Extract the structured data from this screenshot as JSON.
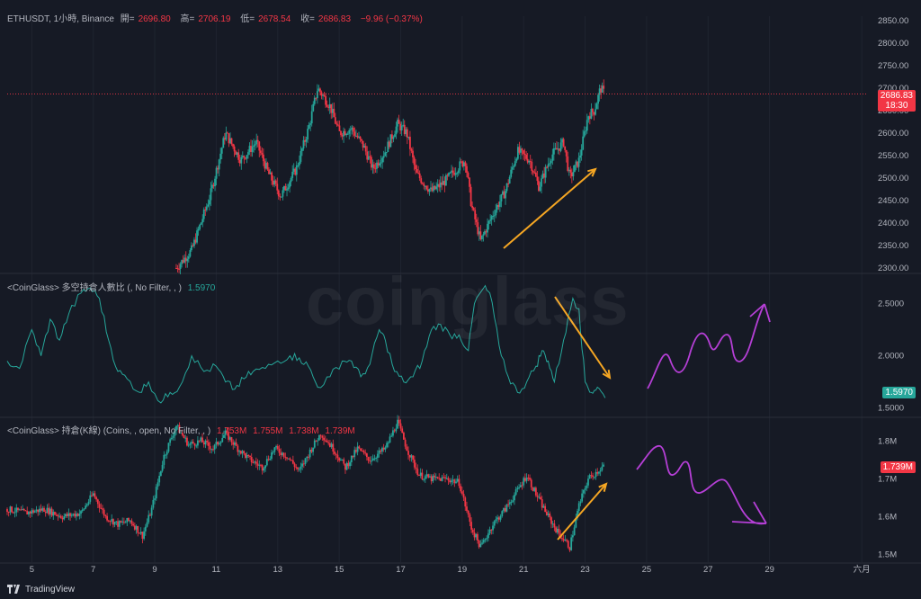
{
  "watermark": "coinglass",
  "header": {
    "symbol": "ETHUSDT, 1小時, Binance",
    "open_label": "開=",
    "open": "2696.80",
    "high_label": "高=",
    "high": "2706.19",
    "low_label": "低=",
    "low": "2678.54",
    "close_label": "收=",
    "close": "2686.83",
    "change": "−9.96 (−0.37%)"
  },
  "price_tag": {
    "value": "2686.83",
    "countdown": "18:30"
  },
  "ratio_legend": {
    "title": "<CoinGlass> 多空持倉人數比 (, No Filter, , )",
    "value": "1.5970"
  },
  "ratio_tag": "1.5970",
  "oi_legend": {
    "title": "<CoinGlass> 持倉(K線) (Coins, , open, No Filter, , )",
    "o": "1.753M",
    "h": "1.755M",
    "l": "1.738M",
    "c": "1.739M"
  },
  "oi_tag": "1.739M",
  "footer": {
    "brand": "TradingView"
  },
  "colors": {
    "up": "#26a69a",
    "down": "#f23645",
    "ratio_line": "#26a69a",
    "arrow": "#f5a623",
    "drawing": "#b53fd6"
  },
  "chart_data": [
    {
      "type": "candlestick",
      "title": "ETHUSDT, 1小時, Binance",
      "y_ticks": [
        "2850.00",
        "2800.00",
        "2750.00",
        "2700.00",
        "2650.00",
        "2600.00",
        "2550.00",
        "2500.00",
        "2450.00",
        "2400.00",
        "2350.00",
        "2300.00"
      ],
      "ylim": [
        2290,
        2860
      ],
      "x_ticks": [
        "5",
        "7",
        "9",
        "11",
        "13",
        "15",
        "17",
        "19",
        "21",
        "23",
        "25",
        "27",
        "29",
        "六月"
      ],
      "x_range_days": [
        4.2,
        32.2
      ],
      "last_price": 2686.83,
      "anchors": [
        [
          9.7,
          2300
        ],
        [
          10.2,
          2340
        ],
        [
          10.8,
          2460
        ],
        [
          11.3,
          2600
        ],
        [
          11.8,
          2540
        ],
        [
          12.3,
          2580
        ],
        [
          12.7,
          2510
        ],
        [
          13.1,
          2460
        ],
        [
          13.6,
          2520
        ],
        [
          14.0,
          2610
        ],
        [
          14.3,
          2700
        ],
        [
          14.7,
          2660
        ],
        [
          15.0,
          2600
        ],
        [
          15.4,
          2610
        ],
        [
          15.8,
          2570
        ],
        [
          16.1,
          2520
        ],
        [
          16.5,
          2560
        ],
        [
          16.9,
          2620
        ],
        [
          17.2,
          2600
        ],
        [
          17.5,
          2510
        ],
        [
          18.0,
          2470
        ],
        [
          18.4,
          2490
        ],
        [
          18.8,
          2520
        ],
        [
          19.1,
          2540
        ],
        [
          19.3,
          2440
        ],
        [
          19.6,
          2360
        ],
        [
          20.0,
          2420
        ],
        [
          20.4,
          2470
        ],
        [
          20.8,
          2560
        ],
        [
          21.2,
          2540
        ],
        [
          21.5,
          2480
        ],
        [
          21.9,
          2550
        ],
        [
          22.3,
          2580
        ],
        [
          22.5,
          2500
        ],
        [
          22.8,
          2540
        ],
        [
          23.1,
          2640
        ],
        [
          23.3,
          2650
        ],
        [
          23.5,
          2700
        ],
        [
          23.65,
          2687
        ]
      ]
    },
    {
      "type": "line",
      "title": "<CoinGlass> 多空持倉人數比 (, No Filter, , )",
      "y_ticks": [
        "2.5000",
        "2.0000",
        "1.5000"
      ],
      "ylim": [
        1.42,
        2.78
      ],
      "last_value": 1.597,
      "points": [
        [
          4.2,
          1.95
        ],
        [
          4.6,
          1.88
        ],
        [
          5.0,
          2.25
        ],
        [
          5.3,
          2.0
        ],
        [
          5.6,
          2.35
        ],
        [
          5.9,
          2.15
        ],
        [
          6.2,
          2.4
        ],
        [
          6.6,
          2.6
        ],
        [
          6.9,
          2.65
        ],
        [
          7.2,
          2.55
        ],
        [
          7.5,
          2.15
        ],
        [
          7.8,
          1.85
        ],
        [
          8.1,
          1.78
        ],
        [
          8.5,
          1.65
        ],
        [
          8.8,
          1.75
        ],
        [
          9.2,
          1.55
        ],
        [
          9.5,
          1.65
        ],
        [
          9.8,
          1.7
        ],
        [
          10.2,
          2.0
        ],
        [
          10.6,
          1.85
        ],
        [
          11.0,
          1.9
        ],
        [
          11.3,
          1.75
        ],
        [
          11.6,
          1.68
        ],
        [
          11.9,
          1.78
        ],
        [
          12.2,
          1.85
        ],
        [
          12.6,
          1.88
        ],
        [
          13.0,
          1.95
        ],
        [
          13.4,
          2.0
        ],
        [
          13.7,
          1.98
        ],
        [
          14.0,
          1.9
        ],
        [
          14.3,
          1.7
        ],
        [
          14.7,
          1.8
        ],
        [
          15.1,
          1.95
        ],
        [
          15.4,
          1.95
        ],
        [
          15.7,
          1.8
        ],
        [
          16.0,
          1.92
        ],
        [
          16.3,
          2.25
        ],
        [
          16.5,
          2.15
        ],
        [
          16.8,
          1.85
        ],
        [
          17.1,
          1.75
        ],
        [
          17.4,
          1.8
        ],
        [
          17.7,
          1.95
        ],
        [
          18.0,
          2.25
        ],
        [
          18.3,
          2.3
        ],
        [
          18.6,
          2.2
        ],
        [
          18.9,
          2.2
        ],
        [
          19.2,
          2.05
        ],
        [
          19.4,
          2.5
        ],
        [
          19.7,
          2.65
        ],
        [
          19.9,
          2.6
        ],
        [
          20.2,
          2.1
        ],
        [
          20.5,
          1.8
        ],
        [
          20.8,
          1.65
        ],
        [
          21.1,
          1.75
        ],
        [
          21.4,
          1.9
        ],
        [
          21.6,
          2.05
        ],
        [
          21.8,
          1.95
        ],
        [
          22.0,
          1.75
        ],
        [
          22.3,
          2.15
        ],
        [
          22.6,
          2.55
        ],
        [
          22.8,
          2.45
        ],
        [
          23.0,
          1.75
        ],
        [
          23.2,
          1.65
        ],
        [
          23.4,
          1.7
        ],
        [
          23.65,
          1.597
        ]
      ]
    },
    {
      "type": "candlestick",
      "title": "<CoinGlass> 持倉(K線) (Coins, , open, No Filter, , )",
      "y_ticks": [
        "1.8M",
        "1.7M",
        "1.6M",
        "1.5M"
      ],
      "ylim": [
        1.48,
        1.86
      ],
      "last_value": 1.739,
      "anchors": [
        [
          4.2,
          1.62
        ],
        [
          4.8,
          1.61
        ],
        [
          5.4,
          1.62
        ],
        [
          6.0,
          1.6
        ],
        [
          6.6,
          1.61
        ],
        [
          7.0,
          1.66
        ],
        [
          7.4,
          1.6
        ],
        [
          7.8,
          1.58
        ],
        [
          8.2,
          1.59
        ],
        [
          8.6,
          1.55
        ],
        [
          8.9,
          1.62
        ],
        [
          9.3,
          1.76
        ],
        [
          9.7,
          1.84
        ],
        [
          10.1,
          1.79
        ],
        [
          10.5,
          1.8
        ],
        [
          10.9,
          1.78
        ],
        [
          11.3,
          1.82
        ],
        [
          11.7,
          1.78
        ],
        [
          12.1,
          1.75
        ],
        [
          12.5,
          1.73
        ],
        [
          12.9,
          1.78
        ],
        [
          13.3,
          1.76
        ],
        [
          13.7,
          1.72
        ],
        [
          14.1,
          1.78
        ],
        [
          14.4,
          1.82
        ],
        [
          14.8,
          1.78
        ],
        [
          15.2,
          1.73
        ],
        [
          15.6,
          1.78
        ],
        [
          16.0,
          1.75
        ],
        [
          16.5,
          1.78
        ],
        [
          16.9,
          1.85
        ],
        [
          17.2,
          1.78
        ],
        [
          17.6,
          1.71
        ],
        [
          18.0,
          1.7
        ],
        [
          18.5,
          1.7
        ],
        [
          18.9,
          1.69
        ],
        [
          19.3,
          1.57
        ],
        [
          19.6,
          1.52
        ],
        [
          20.0,
          1.58
        ],
        [
          20.4,
          1.62
        ],
        [
          20.8,
          1.67
        ],
        [
          21.1,
          1.71
        ],
        [
          21.4,
          1.66
        ],
        [
          21.8,
          1.6
        ],
        [
          22.1,
          1.56
        ],
        [
          22.5,
          1.52
        ],
        [
          22.8,
          1.63
        ],
        [
          23.1,
          1.7
        ],
        [
          23.4,
          1.72
        ],
        [
          23.65,
          1.739
        ]
      ]
    }
  ]
}
